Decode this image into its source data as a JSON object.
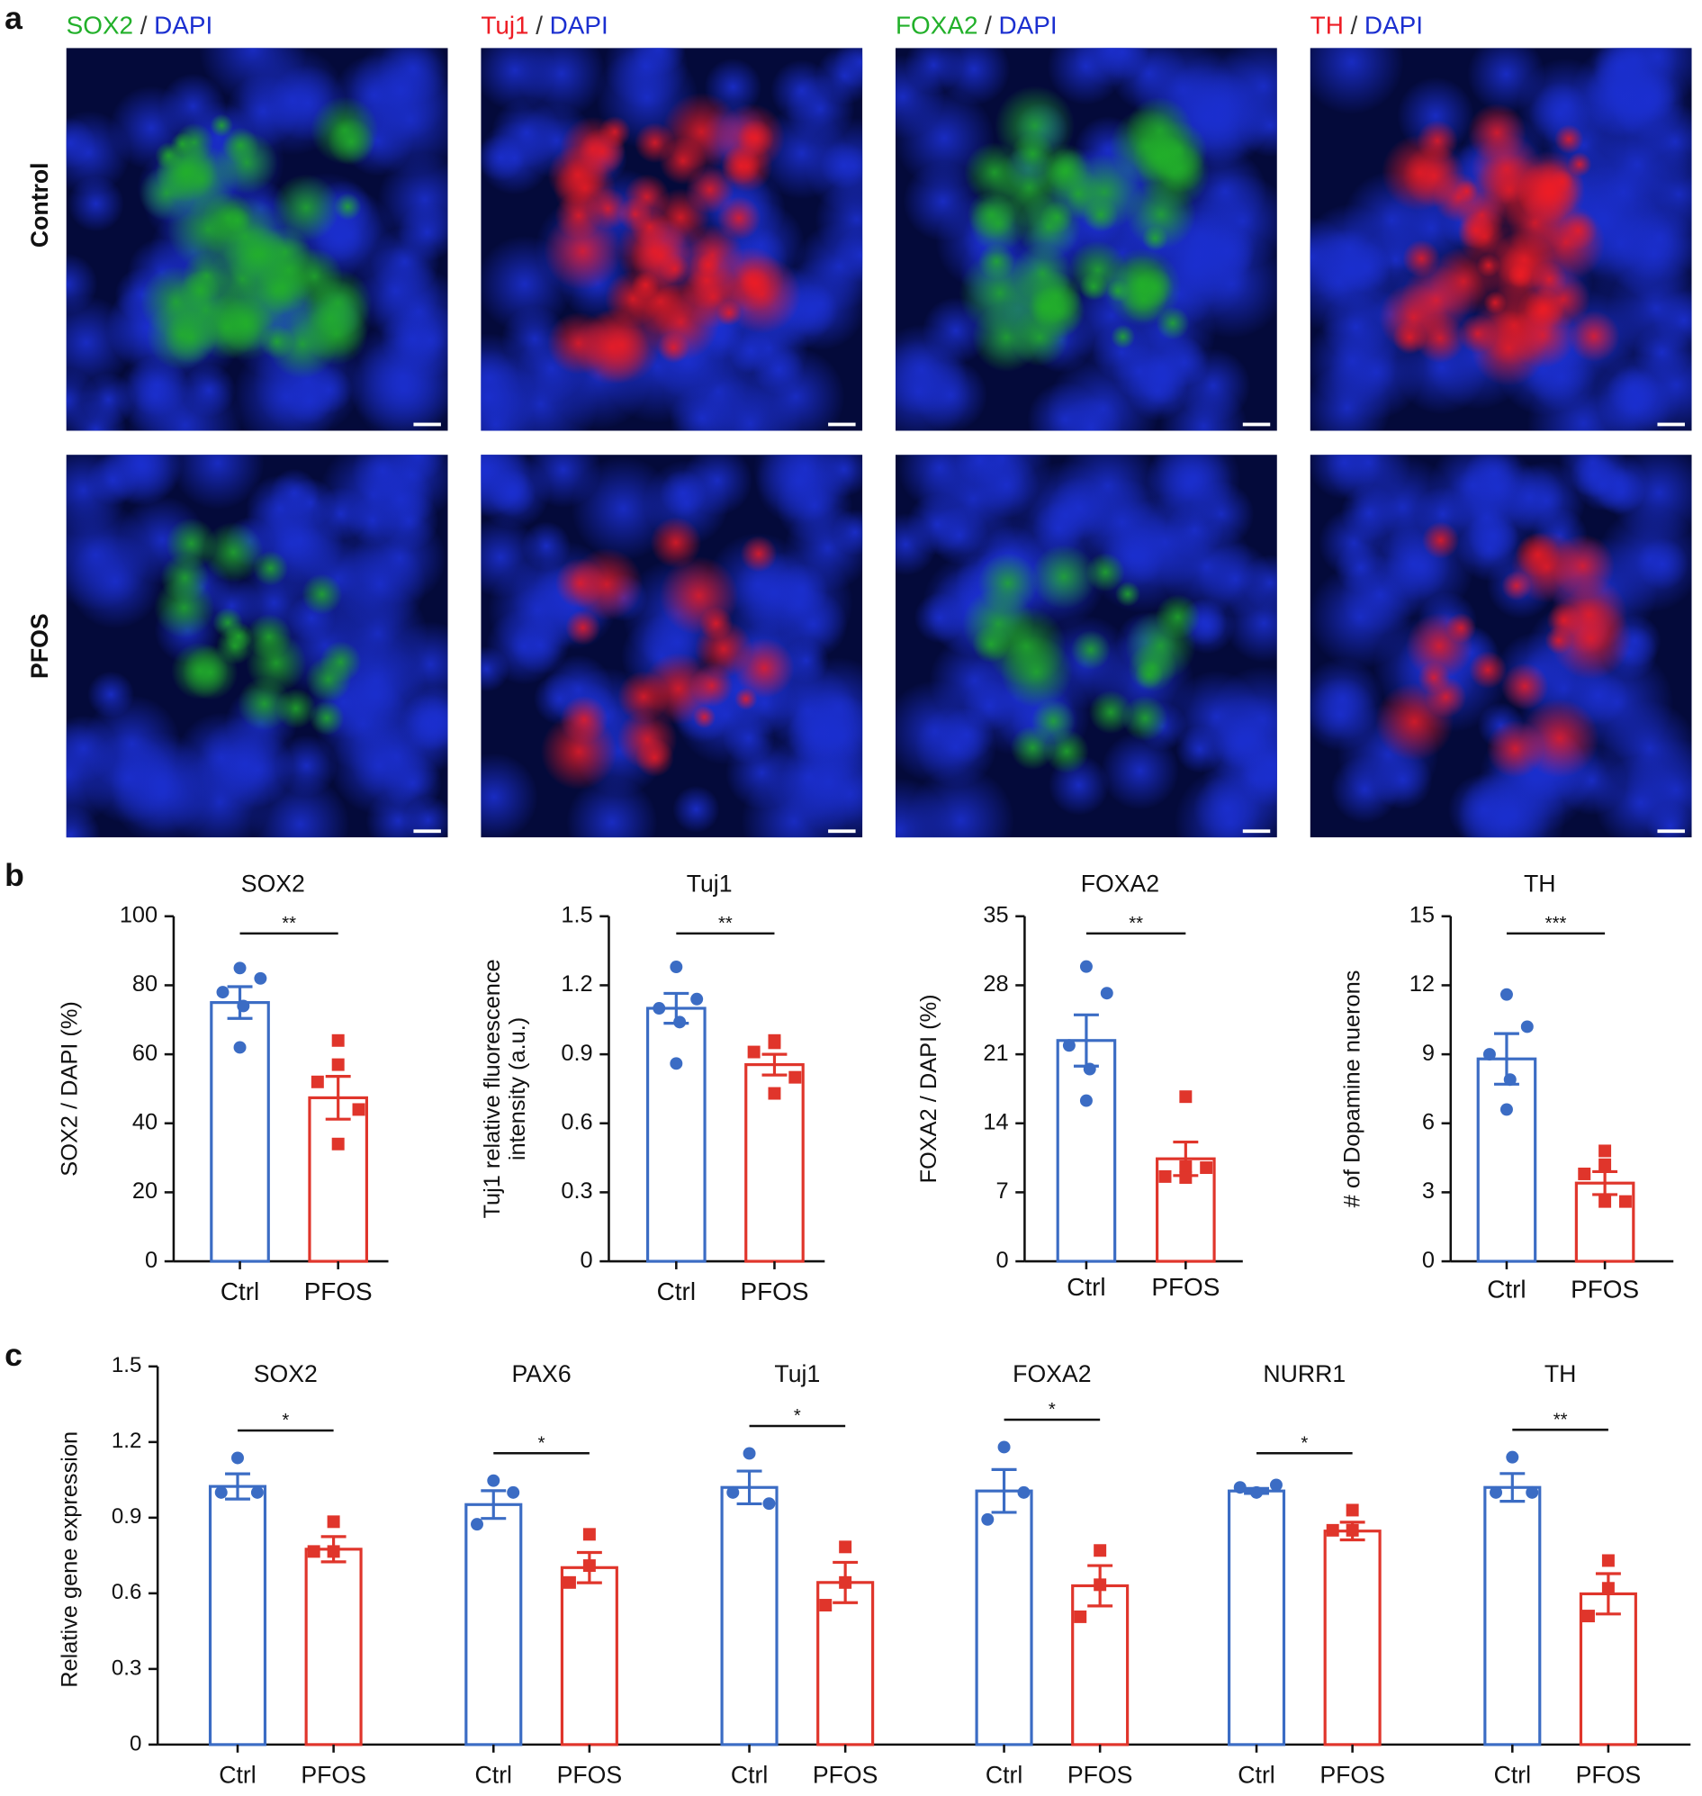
{
  "panel_labels": [
    "a",
    "b",
    "c"
  ],
  "panel_a": {
    "rows": [
      "Control",
      "PFOS"
    ],
    "columns": [
      {
        "stain": "SOX2",
        "stain_color": "#22b02a",
        "separator": "/",
        "counterstain": "DAPI",
        "counterstain_color": "#1b2fd0"
      },
      {
        "stain": "Tuj1",
        "stain_color": "#ee1c24",
        "separator": "/",
        "counterstain": "DAPI",
        "counterstain_color": "#1b2fd0"
      },
      {
        "stain": "FOXA2",
        "stain_color": "#22b02a",
        "separator": "/",
        "counterstain": "DAPI",
        "counterstain_color": "#1b2fd0"
      },
      {
        "stain": "TH",
        "stain_color": "#ee1c24",
        "separator": "/",
        "counterstain": "DAPI",
        "counterstain_color": "#1b2fd0"
      }
    ]
  },
  "chart_data": [
    {
      "type": "bar",
      "title": "SOX2",
      "ylabel": "SOX2 / DAPI (%)",
      "categories": [
        "Ctrl",
        "PFOS"
      ],
      "colors": [
        "#3b6cc4",
        "#e0352b"
      ],
      "markers": [
        "circle",
        "square"
      ],
      "values": [
        75,
        47.4
      ],
      "errors": [
        4.6,
        6.2
      ],
      "points": [
        [
          85,
          82,
          78,
          74,
          62
        ],
        [
          64,
          57,
          52,
          44,
          34
        ]
      ],
      "significance": "**",
      "ylim": [
        0,
        100
      ],
      "yticks": [
        0,
        20,
        40,
        60,
        80,
        100
      ]
    },
    {
      "type": "bar",
      "title": "Tuj1",
      "ylabel": [
        "Tuj1 relative fluorescence",
        "intensity (a.u.)"
      ],
      "categories": [
        "Ctrl",
        "PFOS"
      ],
      "colors": [
        "#3b6cc4",
        "#e0352b"
      ],
      "markers": [
        "circle",
        "square"
      ],
      "values": [
        1.1,
        0.855
      ],
      "errors": [
        0.065,
        0.045
      ],
      "points": [
        [
          1.28,
          1.14,
          1.1,
          1.04,
          0.86
        ],
        [
          0.96,
          0.95,
          0.91,
          0.8,
          0.73
        ]
      ],
      "significance": "**",
      "ylim": [
        0,
        1.5
      ],
      "yticks": [
        0,
        0.3,
        0.6,
        0.9,
        1.2,
        1.5
      ]
    },
    {
      "type": "bar",
      "title": "FOXA2",
      "ylabel": "FOXA2 / DAPI (%)",
      "categories": [
        "Ctrl",
        "PFOS"
      ],
      "colors": [
        "#3b6cc4",
        "#e0352b"
      ],
      "markers": [
        "circle",
        "square"
      ],
      "values": [
        22.4,
        10.4
      ],
      "errors": [
        2.6,
        1.7
      ],
      "points": [
        [
          29.9,
          27.2,
          21.9,
          19.5,
          16.3
        ],
        [
          16.7,
          9.6,
          8.6,
          9.5,
          8.5
        ]
      ],
      "significance": "**",
      "ylim": [
        0,
        35
      ],
      "yticks": [
        0,
        7,
        14,
        21,
        28,
        35
      ]
    },
    {
      "type": "bar",
      "title": "TH",
      "ylabel": "# of Dopamine nuerons",
      "categories": [
        "Ctrl",
        "PFOS"
      ],
      "colors": [
        "#3b6cc4",
        "#e0352b"
      ],
      "markers": [
        "circle",
        "square"
      ],
      "values": [
        8.8,
        3.4
      ],
      "errors": [
        1.1,
        0.5
      ],
      "points": [
        [
          11.6,
          10.2,
          9.0,
          7.9,
          6.6
        ],
        [
          4.8,
          4.2,
          3.8,
          2.6,
          2.6
        ]
      ],
      "significance": "***",
      "ylim": [
        0,
        15
      ],
      "yticks": [
        0,
        3,
        6,
        9,
        12,
        15
      ]
    },
    {
      "type": "grouped_bar",
      "ylabel": "Relative gene expression",
      "colors": [
        "#3b6cc4",
        "#e0352b"
      ],
      "markers": [
        "circle",
        "square"
      ],
      "ylim": [
        0,
        1.5
      ],
      "yticks": [
        0,
        0.3,
        0.6,
        0.9,
        1.2,
        1.5
      ],
      "groups": [
        {
          "title": "SOX2",
          "categories": [
            "Ctrl",
            "PFOS"
          ],
          "values": [
            1.024,
            0.775
          ],
          "errors": [
            0.05,
            0.05
          ],
          "points": [
            [
              1.137,
              1.0,
              1.0
            ],
            [
              0.884,
              0.766,
              0.766
            ]
          ],
          "significance": "*"
        },
        {
          "title": "PAX6",
          "categories": [
            "Ctrl",
            "PFOS"
          ],
          "values": [
            0.952,
            0.702
          ],
          "errors": [
            0.055,
            0.06
          ],
          "points": [
            [
              1.047,
              1.0,
              0.874
            ],
            [
              0.834,
              0.71,
              0.643
            ]
          ],
          "significance": "*"
        },
        {
          "title": "Tuj1",
          "categories": [
            "Ctrl",
            "PFOS"
          ],
          "values": [
            1.02,
            0.643
          ],
          "errors": [
            0.065,
            0.08
          ],
          "points": [
            [
              1.155,
              0.956,
              1.0
            ],
            [
              0.784,
              0.643,
              0.553
            ]
          ],
          "significance": "*"
        },
        {
          "title": "FOXA2",
          "categories": [
            "Ctrl",
            "PFOS"
          ],
          "values": [
            1.006,
            0.63
          ],
          "errors": [
            0.085,
            0.08
          ],
          "points": [
            [
              1.18,
              1.0,
              0.893
            ],
            [
              0.77,
              0.634,
              0.507
            ]
          ],
          "significance": "*"
        },
        {
          "title": "NURR1",
          "categories": [
            "Ctrl",
            "PFOS"
          ],
          "values": [
            1.006,
            0.847
          ],
          "errors": [
            0.01,
            0.035
          ],
          "points": [
            [
              1.0,
              1.03,
              1.02
            ],
            [
              0.93,
              0.85,
              0.85
            ]
          ],
          "significance": "*"
        },
        {
          "title": "TH",
          "categories": [
            "Ctrl",
            "PFOS"
          ],
          "values": [
            1.02,
            0.598
          ],
          "errors": [
            0.055,
            0.08
          ],
          "points": [
            [
              1.14,
              1.0,
              1.0
            ],
            [
              0.73,
              0.62,
              0.51
            ]
          ],
          "significance": "**"
        }
      ]
    }
  ]
}
